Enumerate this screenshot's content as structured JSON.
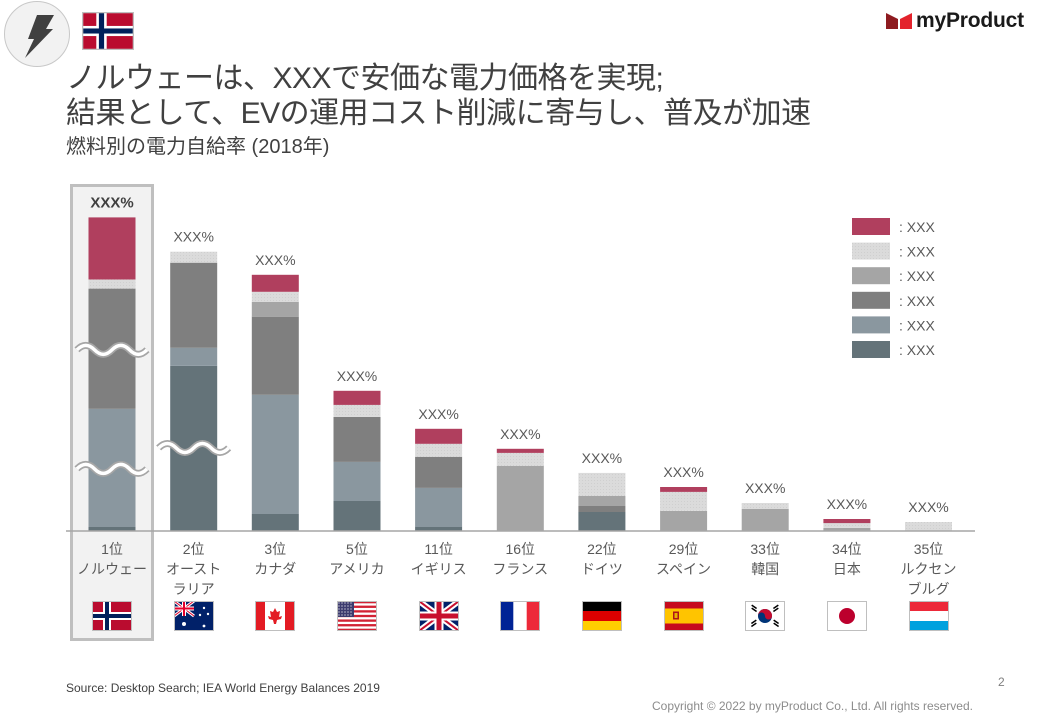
{
  "header": {
    "icon": "lightning-bolt-icon",
    "country_flag": "norway",
    "logo_text": "myProduct"
  },
  "title": {
    "line1": "ノルウェーは、XXXで安価な電力価格を実現;",
    "line2": "結果として、EVの運用コスト削減に寄与し、普及が加速",
    "subtitle": "燃料別の電力自給率 (2018年)"
  },
  "chart_data": {
    "type": "bar",
    "stacked": true,
    "title": "燃料別の電力自給率 (2018年)",
    "xlabel": "",
    "ylabel": "",
    "ylim": [
      0,
      228
    ],
    "grid": false,
    "legend_position": "top-right",
    "legend_separator": ": ",
    "highlighted_category_index": 0,
    "categories": [
      {
        "rank": "1位",
        "lines": [
          "ノルウェー"
        ],
        "flag": "norway"
      },
      {
        "rank": "2位",
        "lines": [
          "オースト",
          "ラリア"
        ],
        "flag": "australia"
      },
      {
        "rank": "3位",
        "lines": [
          "カナダ"
        ],
        "flag": "canada"
      },
      {
        "rank": "5位",
        "lines": [
          "アメリカ"
        ],
        "flag": "usa"
      },
      {
        "rank": "11位",
        "lines": [
          "イギリス"
        ],
        "flag": "uk"
      },
      {
        "rank": "16位",
        "lines": [
          "フランス"
        ],
        "flag": "france"
      },
      {
        "rank": "22位",
        "lines": [
          "ドイツ"
        ],
        "flag": "germany"
      },
      {
        "rank": "29位",
        "lines": [
          "スペイン"
        ],
        "flag": "spain"
      },
      {
        "rank": "33位",
        "lines": [
          "韓国"
        ],
        "flag": "south-korea"
      },
      {
        "rank": "34位",
        "lines": [
          "日本"
        ],
        "flag": "japan"
      },
      {
        "rank": "35位",
        "lines": [
          "ルクセン",
          "ブルグ"
        ],
        "flag": "luxembourg"
      }
    ],
    "series": [
      {
        "key": "slate",
        "name": "XXX",
        "color": "#647379",
        "values": [
          2.8,
          113.8,
          11.7,
          20.7,
          2.8,
          0,
          13.1,
          0,
          0,
          0,
          0
        ]
      },
      {
        "key": "blue-gray",
        "name": "XXX",
        "color": "#8a979f",
        "values": [
          81.4,
          12.4,
          82.1,
          26.9,
          26.9,
          0,
          0,
          0,
          0,
          0,
          0
        ]
      },
      {
        "key": "dark-gray",
        "name": "XXX",
        "color": "#7f7f7f",
        "values": [
          82.8,
          58.6,
          53.8,
          31.0,
          21.4,
          0,
          4.1,
          0,
          0,
          0,
          0
        ]
      },
      {
        "key": "mid-gray",
        "name": "XXX",
        "color": "#a5a5a5",
        "values": [
          0,
          0,
          10.3,
          0,
          0,
          44.8,
          6.9,
          13.8,
          15.2,
          2.1,
          0
        ]
      },
      {
        "key": "light-gray",
        "name": "XXX",
        "color": "#d9d9d9",
        "values": [
          6.2,
          7.6,
          6.9,
          8.3,
          9.0,
          9.0,
          15.9,
          13.1,
          4.1,
          3.4,
          6.2
        ]
      },
      {
        "key": "red",
        "name": "XXX",
        "color": "#b03f5e",
        "values": [
          42.8,
          0,
          11.7,
          9.7,
          10.3,
          2.8,
          0,
          3.4,
          0,
          2.8,
          0
        ]
      }
    ],
    "data_labels": [
      "XXX%",
      "XXX%",
      "XXX%",
      "XXX%",
      "XXX%",
      "XXX%",
      "XXX%",
      "XXX%",
      "XXX%",
      "XXX%",
      "XXX%"
    ],
    "axis_breaks": [
      {
        "category_index": 0,
        "at": [
          124.8,
          42.8
        ]
      },
      {
        "category_index": 1,
        "at": [
          57.2
        ]
      }
    ]
  },
  "footer": {
    "source": "Source: Desktop Search; IEA World Energy Balances 2019",
    "page_number": "2",
    "copyright": "Copyright © 2022 by myProduct Co., Ltd.  All rights reserved."
  }
}
